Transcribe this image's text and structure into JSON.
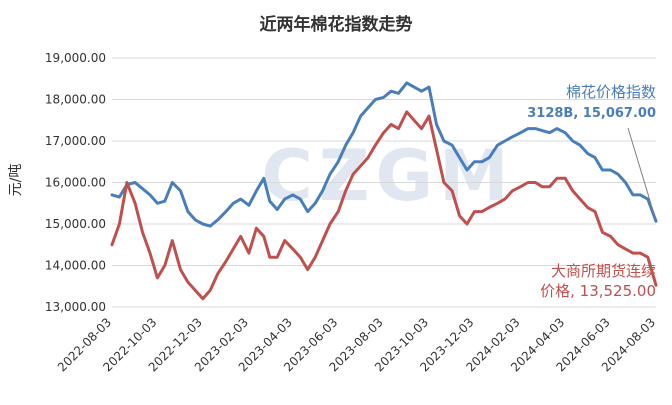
{
  "chart_data": {
    "type": "line",
    "title": "近两年棉花指数走势",
    "ylabel": "元/吨",
    "xlabel": "",
    "watermark": "CZGM",
    "ylim": [
      13000,
      19000
    ],
    "y_ticks": [
      "13,000.00",
      "14,000.00",
      "15,000.00",
      "16,000.00",
      "17,000.00",
      "18,000.00",
      "19,000.00"
    ],
    "x_ticks": [
      "2022-08-03",
      "2022-10-03",
      "2022-12-03",
      "2023-02-03",
      "2023-04-03",
      "2023-06-03",
      "2023-08-03",
      "2023-10-03",
      "2023-12-03",
      "2024-02-03",
      "2024-04-03",
      "2024-06-03",
      "2024-08-03"
    ],
    "grid": "horizontal",
    "series": [
      {
        "name": "棉花价格指数",
        "label_line1": "棉花价格指数",
        "label_line2": "3128B, 15,067.00",
        "color": "#4a7ebb",
        "x": [
          "2022-08-03",
          "2022-08-13",
          "2022-08-23",
          "2022-09-03",
          "2022-09-13",
          "2022-09-23",
          "2022-10-03",
          "2022-10-13",
          "2022-10-23",
          "2022-11-03",
          "2022-11-13",
          "2022-11-23",
          "2022-12-03",
          "2022-12-13",
          "2022-12-23",
          "2023-01-03",
          "2023-01-13",
          "2023-01-23",
          "2023-02-03",
          "2023-02-13",
          "2023-02-23",
          "2023-03-03",
          "2023-03-13",
          "2023-03-23",
          "2023-04-03",
          "2023-04-13",
          "2023-04-23",
          "2023-05-03",
          "2023-05-13",
          "2023-05-23",
          "2023-06-03",
          "2023-06-13",
          "2023-06-23",
          "2023-07-03",
          "2023-07-13",
          "2023-07-23",
          "2023-08-03",
          "2023-08-13",
          "2023-08-23",
          "2023-09-03",
          "2023-09-13",
          "2023-09-23",
          "2023-10-03",
          "2023-10-13",
          "2023-10-23",
          "2023-11-03",
          "2023-11-13",
          "2023-11-23",
          "2023-12-03",
          "2023-12-13",
          "2023-12-23",
          "2024-01-03",
          "2024-01-13",
          "2024-01-23",
          "2024-02-03",
          "2024-02-13",
          "2024-02-23",
          "2024-03-03",
          "2024-03-13",
          "2024-03-23",
          "2024-04-03",
          "2024-04-13",
          "2024-04-23",
          "2024-05-03",
          "2024-05-13",
          "2024-05-23",
          "2024-06-03",
          "2024-06-13",
          "2024-06-23",
          "2024-07-03",
          "2024-07-13",
          "2024-07-23",
          "2024-08-03"
        ],
        "values": [
          15700,
          15650,
          15950,
          16000,
          15850,
          15700,
          15500,
          15550,
          16000,
          15800,
          15300,
          15100,
          15000,
          14950,
          15100,
          15300,
          15500,
          15600,
          15450,
          15800,
          16100,
          15550,
          15350,
          15600,
          15700,
          15600,
          15300,
          15500,
          15800,
          16200,
          16500,
          16900,
          17200,
          17600,
          17800,
          18000,
          18050,
          18200,
          18150,
          18400,
          18300,
          18200,
          18300,
          17400,
          17000,
          16900,
          16600,
          16300,
          16500,
          16500,
          16600,
          16900,
          17000,
          17100,
          17200,
          17300,
          17300,
          17250,
          17200,
          17300,
          17200,
          17000,
          16900,
          16700,
          16600,
          16300,
          16300,
          16200,
          16000,
          15700,
          15700,
          15600,
          15067
        ]
      },
      {
        "name": "大商所期货连续价格",
        "label_line1": "大商所期货连续",
        "label_line2": "价格, 13,525.00",
        "color": "#c0504d",
        "x": [
          "2022-08-03",
          "2022-08-13",
          "2022-08-23",
          "2022-09-03",
          "2022-09-13",
          "2022-09-23",
          "2022-10-03",
          "2022-10-13",
          "2022-10-23",
          "2022-11-03",
          "2022-11-13",
          "2022-11-23",
          "2022-12-03",
          "2022-12-13",
          "2022-12-23",
          "2023-01-03",
          "2023-01-13",
          "2023-01-23",
          "2023-02-03",
          "2023-02-13",
          "2023-02-23",
          "2023-03-03",
          "2023-03-13",
          "2023-03-23",
          "2023-04-03",
          "2023-04-13",
          "2023-04-23",
          "2023-05-03",
          "2023-05-13",
          "2023-05-23",
          "2023-06-03",
          "2023-06-13",
          "2023-06-23",
          "2023-07-03",
          "2023-07-13",
          "2023-07-23",
          "2023-08-03",
          "2023-08-13",
          "2023-08-23",
          "2023-09-03",
          "2023-09-13",
          "2023-09-23",
          "2023-10-03",
          "2023-10-13",
          "2023-10-23",
          "2023-11-03",
          "2023-11-13",
          "2023-11-23",
          "2023-12-03",
          "2023-12-13",
          "2023-12-23",
          "2024-01-03",
          "2024-01-13",
          "2024-01-23",
          "2024-02-03",
          "2024-02-13",
          "2024-02-23",
          "2024-03-03",
          "2024-03-13",
          "2024-03-23",
          "2024-04-03",
          "2024-04-13",
          "2024-04-23",
          "2024-05-03",
          "2024-05-13",
          "2024-05-23",
          "2024-06-03",
          "2024-06-13",
          "2024-06-23",
          "2024-07-03",
          "2024-07-13",
          "2024-07-23",
          "2024-08-03"
        ],
        "values": [
          14500,
          15000,
          16000,
          15500,
          14800,
          14300,
          13700,
          14000,
          14600,
          13900,
          13600,
          13400,
          13200,
          13400,
          13800,
          14100,
          14400,
          14700,
          14300,
          14900,
          14700,
          14200,
          14200,
          14600,
          14400,
          14200,
          13900,
          14200,
          14600,
          15000,
          15300,
          15800,
          16200,
          16400,
          16600,
          16900,
          17200,
          17400,
          17300,
          17700,
          17500,
          17300,
          17600,
          16800,
          16000,
          15800,
          15200,
          15000,
          15300,
          15300,
          15400,
          15500,
          15600,
          15800,
          15900,
          16000,
          16000,
          15900,
          15900,
          16100,
          16100,
          15800,
          15600,
          15400,
          15300,
          14800,
          14700,
          14500,
          14400,
          14300,
          14300,
          14200,
          13525
        ]
      }
    ]
  }
}
